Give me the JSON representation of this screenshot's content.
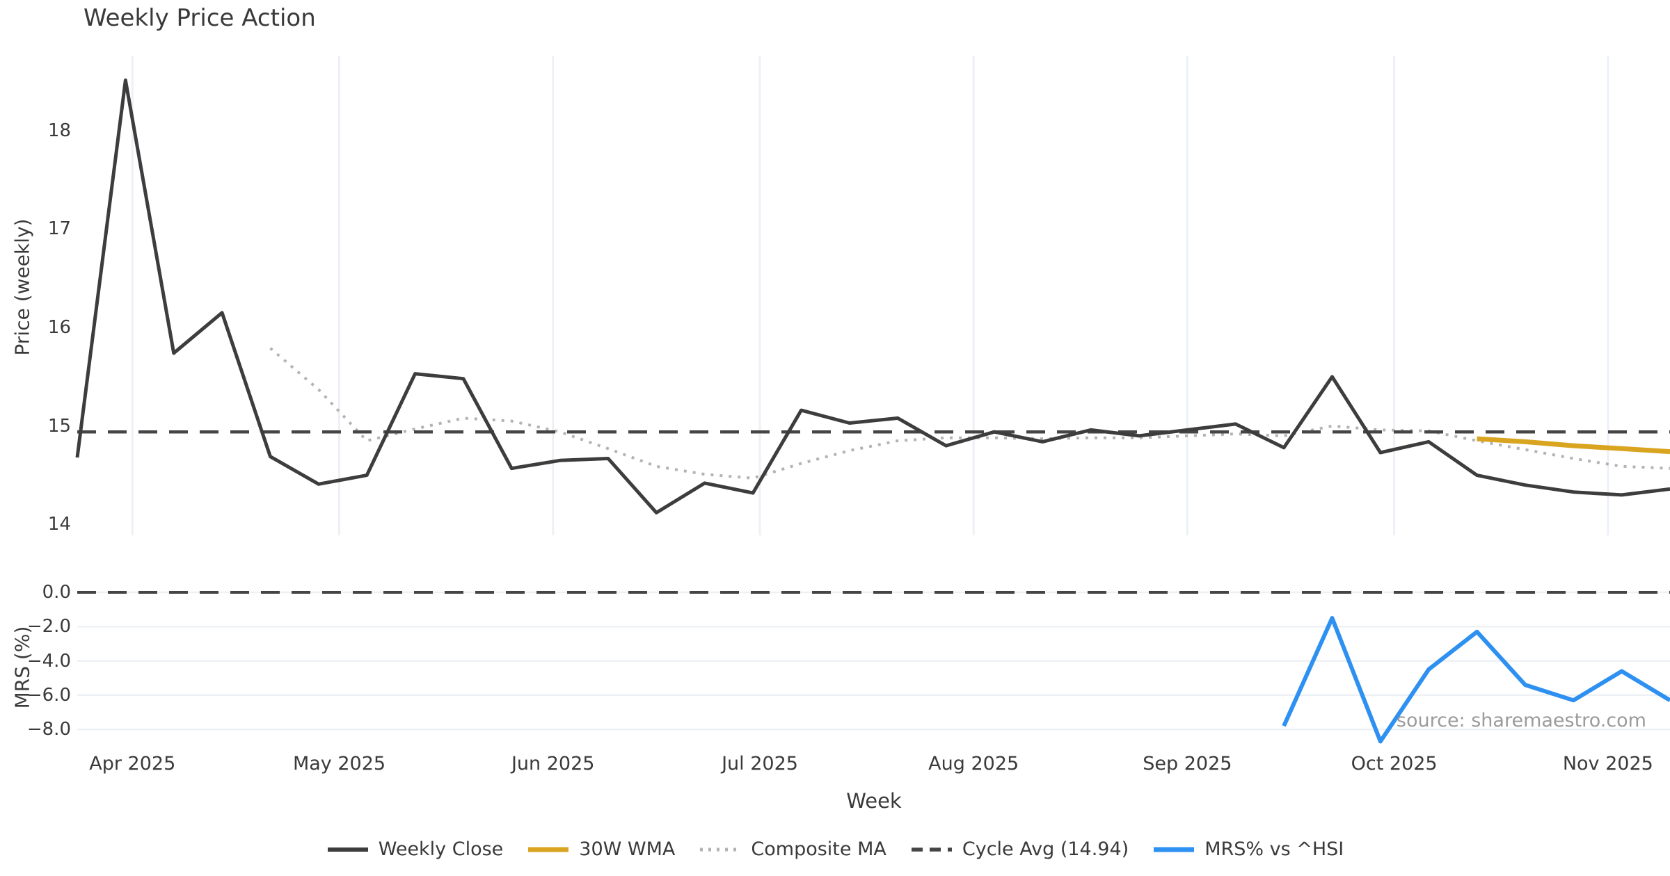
{
  "title": "Weekly Price Action",
  "source_note": "source: sharemaestro.com",
  "colors": {
    "background": "#ffffff",
    "text": "#3a3a3a",
    "muted_text": "#9b9b9b",
    "gridline": "#edf0f5",
    "weekly_close": "#3d3d3d",
    "wma_30w": "#d9a521",
    "composite_ma": "#b3b3b3",
    "cycle_avg": "#454545",
    "mrs_line": "#2e90f0"
  },
  "chart_data": {
    "type": "line",
    "title": "Weekly Price Action",
    "xlabel": "Week",
    "x": [
      "2025-03-24",
      "2025-03-31",
      "2025-04-07",
      "2025-04-14",
      "2025-04-21",
      "2025-04-28",
      "2025-05-05",
      "2025-05-12",
      "2025-05-19",
      "2025-05-26",
      "2025-06-02",
      "2025-06-09",
      "2025-06-16",
      "2025-06-23",
      "2025-06-30",
      "2025-07-07",
      "2025-07-14",
      "2025-07-21",
      "2025-07-28",
      "2025-08-04",
      "2025-08-11",
      "2025-08-18",
      "2025-08-25",
      "2025-09-01",
      "2025-09-08",
      "2025-09-15",
      "2025-09-22",
      "2025-09-29",
      "2025-10-06",
      "2025-10-13",
      "2025-10-20",
      "2025-10-27",
      "2025-11-03",
      "2025-11-10"
    ],
    "x_ticks": [
      {
        "label": "Apr 2025",
        "date": "2025-04-01"
      },
      {
        "label": "May 2025",
        "date": "2025-05-01"
      },
      {
        "label": "Jun 2025",
        "date": "2025-06-01"
      },
      {
        "label": "Jul 2025",
        "date": "2025-07-01"
      },
      {
        "label": "Aug 2025",
        "date": "2025-08-01"
      },
      {
        "label": "Sep 2025",
        "date": "2025-09-01"
      },
      {
        "label": "Oct 2025",
        "date": "2025-10-01"
      },
      {
        "label": "Nov 2025",
        "date": "2025-11-01"
      }
    ],
    "panels": [
      {
        "id": "price",
        "ylabel": "Price (weekly)",
        "ylim": [
          13.89,
          18.76
        ],
        "grid": "vertical-months",
        "yticks": [
          {
            "v": 14,
            "label": "14"
          },
          {
            "v": 15,
            "label": "15"
          },
          {
            "v": 16,
            "label": "16"
          },
          {
            "v": 17,
            "label": "17"
          },
          {
            "v": 18,
            "label": "18"
          }
        ]
      },
      {
        "id": "mrs",
        "ylabel": "MRS (%)",
        "ylim": [
          -9.05,
          0.57
        ],
        "grid": "horizontal",
        "yticks": [
          {
            "v": 0,
            "label": "0.0"
          },
          {
            "v": -2,
            "label": "−2.0"
          },
          {
            "v": -4,
            "label": "−4.0"
          },
          {
            "v": -6,
            "label": "−6.0"
          },
          {
            "v": -8,
            "label": "−8.0"
          }
        ]
      }
    ],
    "series": [
      {
        "name": "Weekly Close",
        "panel": "price",
        "style": "solid",
        "color": "#3d3d3d",
        "width": 5,
        "z": 4,
        "in_legend": true,
        "values": [
          14.68,
          18.51,
          15.74,
          16.15,
          14.69,
          14.41,
          14.5,
          15.53,
          15.48,
          14.57,
          14.65,
          14.67,
          14.12,
          14.42,
          14.32,
          15.16,
          15.03,
          15.08,
          14.8,
          14.94,
          14.84,
          14.96,
          14.9,
          14.96,
          15.02,
          14.78,
          15.5,
          14.73,
          14.84,
          14.5,
          14.4,
          14.33,
          14.3,
          14.36
        ]
      },
      {
        "name": "30W WMA",
        "panel": "price",
        "style": "solid",
        "color": "#d9a521",
        "width": 7,
        "z": 3,
        "in_legend": true,
        "values": [
          null,
          null,
          null,
          null,
          null,
          null,
          null,
          null,
          null,
          null,
          null,
          null,
          null,
          null,
          null,
          null,
          null,
          null,
          null,
          null,
          null,
          null,
          null,
          null,
          null,
          null,
          null,
          null,
          null,
          14.87,
          14.84,
          14.8,
          14.77,
          14.74
        ]
      },
      {
        "name": "Composite MA",
        "panel": "price",
        "style": "dotted",
        "color": "#b3b3b3",
        "width": 4,
        "z": 1,
        "in_legend": true,
        "values": [
          null,
          null,
          null,
          null,
          15.79,
          15.37,
          14.85,
          14.97,
          15.08,
          15.05,
          14.94,
          14.77,
          14.59,
          14.51,
          14.47,
          14.62,
          14.75,
          14.85,
          14.88,
          14.88,
          14.87,
          14.88,
          14.88,
          14.9,
          14.92,
          14.9,
          15.0,
          14.96,
          14.95,
          14.85,
          14.76,
          14.67,
          14.59,
          14.57
        ]
      },
      {
        "name": "Cycle Avg (14.94)",
        "panel": "price",
        "style": "dashed",
        "color": "#454545",
        "width": 4.5,
        "z": 2,
        "in_legend": true,
        "constant": 14.94
      },
      {
        "name": "MRS% vs ^HSI",
        "panel": "mrs",
        "style": "solid",
        "color": "#2e90f0",
        "width": 6,
        "z": 4,
        "in_legend": true,
        "values": [
          null,
          null,
          null,
          null,
          null,
          null,
          null,
          null,
          null,
          null,
          null,
          null,
          null,
          null,
          null,
          null,
          null,
          null,
          null,
          null,
          null,
          null,
          null,
          null,
          null,
          -7.8,
          -1.5,
          -8.7,
          -4.5,
          -2.3,
          -5.4,
          -6.3,
          -4.6,
          -6.3
        ]
      },
      {
        "name": "Zero Line",
        "panel": "mrs",
        "style": "dashed",
        "color": "#454545",
        "width": 4,
        "z": 2,
        "in_legend": false,
        "constant": 0
      }
    ]
  }
}
